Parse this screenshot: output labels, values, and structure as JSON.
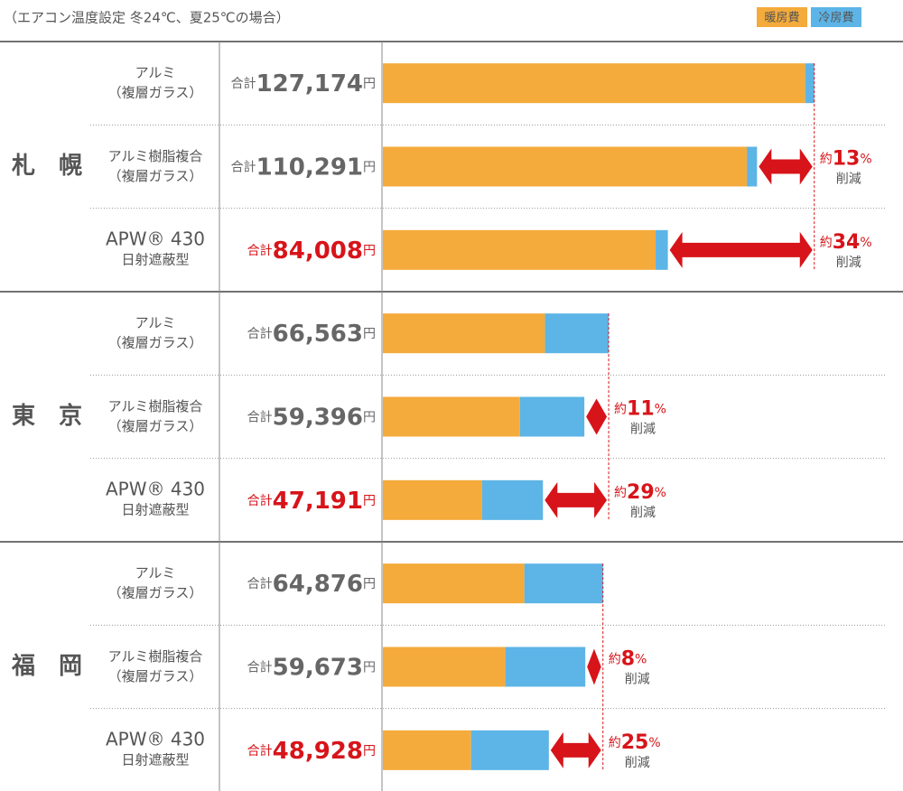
{
  "chart_data": {
    "type": "bar",
    "orientation": "horizontal",
    "stacked": true,
    "title": "（エアコン温度設定 冬24℃、夏25℃の場合）",
    "legend_position": "top-right",
    "groups": [
      {
        "label": "札　幌",
        "categories": [
          {
            "lines": [
              "アルミ",
              "（複層ガラス）"
            ]
          },
          {
            "lines": [
              "アルミ樹脂複合",
              "（複層ガラス）"
            ]
          },
          {
            "lines": [
              "APW® 430",
              "日射遮蔽型"
            ]
          }
        ]
      },
      {
        "label": "東　京",
        "categories": [
          {
            "lines": [
              "アルミ",
              "（複層ガラス）"
            ]
          },
          {
            "lines": [
              "アルミ樹脂複合",
              "（複層ガラス）"
            ]
          },
          {
            "lines": [
              "APW® 430",
              "日射遮蔽型"
            ]
          }
        ]
      },
      {
        "label": "福　岡",
        "categories": [
          {
            "lines": [
              "アルミ",
              "（複層ガラス）"
            ]
          },
          {
            "lines": [
              "アルミ樹脂複合",
              "（複層ガラス）"
            ]
          },
          {
            "lines": [
              "APW® 430",
              "日射遮蔽型"
            ]
          }
        ]
      }
    ],
    "series": [
      {
        "name": "暖房費",
        "color": "#f4ab3b",
        "values": [
          124500,
          107300,
          80400,
          47800,
          40400,
          29200,
          41700,
          36100,
          26000
        ]
      },
      {
        "name": "冷房費",
        "color": "#5db4e6",
        "values": [
          2674,
          2991,
          3608,
          18763,
          18996,
          17991,
          23176,
          23573,
          22928
        ]
      }
    ],
    "total_prefix": "合計",
    "total_unit": "円",
    "totals": [
      "127,174",
      "110,291",
      "84,008",
      "66,563",
      "59,396",
      "47,191",
      "64,876",
      "59,673",
      "48,928"
    ],
    "highlight": [
      false,
      false,
      true,
      false,
      false,
      true,
      false,
      false,
      true
    ],
    "highlight_color": "#d7141a",
    "reductions": [
      null,
      {
        "prefix": "約",
        "value": 13,
        "unit": "%",
        "note": "削減"
      },
      {
        "prefix": "約",
        "value": 34,
        "unit": "%",
        "note": "削減"
      },
      null,
      {
        "prefix": "約",
        "value": 11,
        "unit": "%",
        "note": "削減"
      },
      {
        "prefix": "約",
        "value": 29,
        "unit": "%",
        "note": "削減"
      },
      null,
      {
        "prefix": "約",
        "value": 8,
        "unit": "%",
        "note": "削減"
      },
      {
        "prefix": "約",
        "value": 25,
        "unit": "%",
        "note": "削減"
      }
    ],
    "xlim": [
      0,
      148000
    ]
  }
}
